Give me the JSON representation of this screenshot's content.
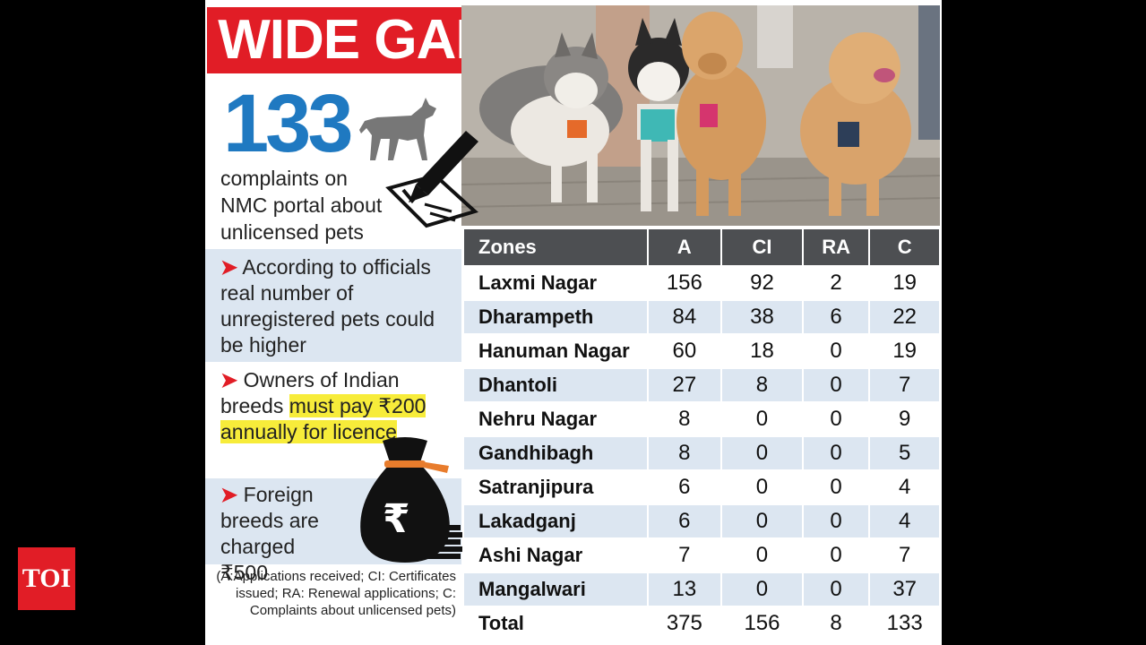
{
  "header": {
    "title": "WIDE GAP"
  },
  "stat": {
    "number": "133",
    "caption": "complaints on NMC portal about unlicensed pets"
  },
  "bullets": [
    {
      "text": "According to officials real number of unregistered pets could be higher"
    },
    {
      "before": "Owners of Indian breeds ",
      "highlight": "must pay ₹200 annually for licence",
      "after": ""
    },
    {
      "text": "Foreign breeds are charged ₹500"
    }
  ],
  "legend": "(A:Applications received; CI: Certificates issued; RA: Renewal applications; C: Complaints about unlicensed pets)",
  "table": {
    "headers": [
      "Zones",
      "A",
      "CI",
      "RA",
      "C"
    ],
    "rows": [
      [
        "Laxmi Nagar",
        "156",
        "92",
        "2",
        "19"
      ],
      [
        "Dharampeth",
        "84",
        "38",
        "6",
        "22"
      ],
      [
        "Hanuman Nagar",
        "60",
        "18",
        "0",
        "19"
      ],
      [
        "Dhantoli",
        "27",
        "8",
        "0",
        "7"
      ],
      [
        "Nehru Nagar",
        "8",
        "0",
        "0",
        "9"
      ],
      [
        "Gandhibagh",
        "8",
        "0",
        "0",
        "5"
      ],
      [
        "Satranjipura",
        "6",
        "0",
        "0",
        "4"
      ],
      [
        "Lakadganj",
        "6",
        "0",
        "0",
        "4"
      ],
      [
        "Ashi Nagar",
        "7",
        "0",
        "0",
        "7"
      ],
      [
        "Mangalwari",
        "13",
        "0",
        "0",
        "37"
      ]
    ],
    "total": [
      "Total",
      "375",
      "156",
      "8",
      "133"
    ]
  },
  "logo": {
    "text": "TOI"
  },
  "colors": {
    "accent_red": "#e11d26",
    "number_blue": "#1f79c1",
    "header_gray": "#4d4f52",
    "row_blue": "#dce6f1",
    "highlight": "#f7ec3a"
  },
  "icons": [
    "dog-silhouette-icon",
    "pen-checkbox-icon",
    "money-bag-icon",
    "rupee-icon",
    "coins-stack-icon"
  ]
}
